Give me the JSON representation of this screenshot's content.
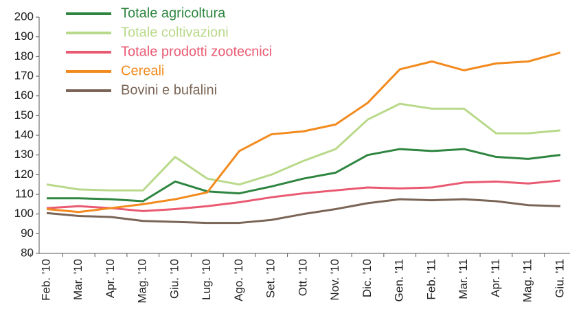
{
  "chart_data": {
    "type": "line",
    "categories": [
      "Feb. '10",
      "Mar. '10",
      "Apr. '10",
      "Mag. '10",
      "Giu. '10",
      "Lug. '10",
      "Ago. '10",
      "Set. '10",
      "Ott. '10",
      "Nov. '10",
      "Dic. '10",
      "Gen. '11",
      "Feb. '11",
      "Mar. '11",
      "Apr. '11",
      "Mag. '11",
      "Giu. '11"
    ],
    "series": [
      {
        "name": "Totale agricoltura",
        "color": "#2e8540",
        "values": [
          108,
          108,
          107.5,
          106.5,
          116.5,
          111.5,
          110.5,
          114,
          118,
          121,
          130,
          133,
          132,
          133,
          129,
          128,
          130
        ]
      },
      {
        "name": "Totale coltivazioni",
        "color": "#b9d98a",
        "values": [
          115,
          112.5,
          112,
          112,
          129,
          118,
          115,
          120,
          127,
          133,
          148,
          156,
          153.5,
          153.5,
          141,
          141,
          142.5
        ]
      },
      {
        "name": "Totale prodotti zootecnici",
        "color": "#e95a72",
        "values": [
          103,
          104,
          103,
          101.5,
          102.5,
          104,
          106,
          108.5,
          110.5,
          112,
          113.5,
          113,
          113.5,
          116,
          116.5,
          115.5,
          117
        ]
      },
      {
        "name": "Cereali",
        "color": "#f28a1e",
        "values": [
          102.5,
          101,
          103,
          105,
          107.5,
          111,
          132,
          140.5,
          142,
          145.5,
          156.5,
          173.5,
          177.5,
          173,
          176.5,
          177.5,
          182
        ]
      },
      {
        "name": "Bovini e bufalini",
        "color": "#7a6556",
        "values": [
          100.5,
          99,
          98.5,
          96.5,
          96,
          95.5,
          95.5,
          97,
          100,
          102.5,
          105.5,
          107.5,
          107,
          107.5,
          106.5,
          104.5,
          104
        ]
      }
    ],
    "ylim": [
      80,
      200
    ],
    "yticks": [
      80,
      90,
      100,
      110,
      120,
      130,
      140,
      150,
      160,
      170,
      180,
      190,
      200
    ]
  }
}
